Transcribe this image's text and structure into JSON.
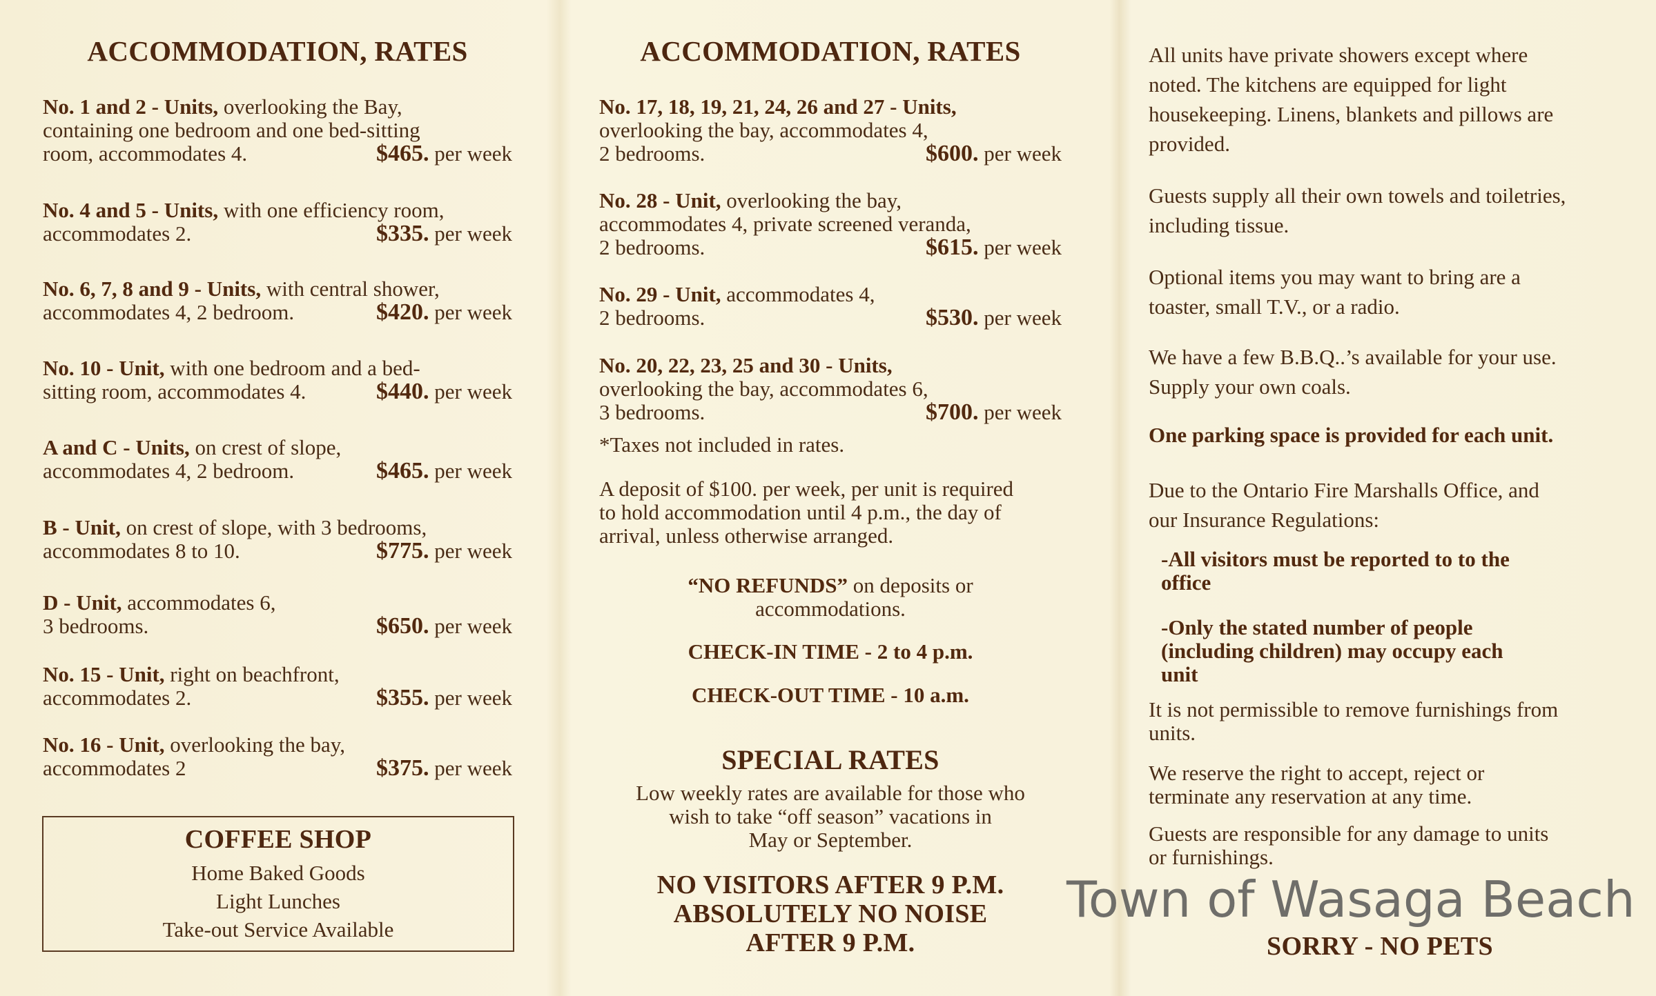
{
  "left": {
    "title": "ACCOMMODATION, RATES",
    "units": [
      {
        "name": "No. 1 and 2 - Units,",
        "desc": " overlooking the Bay,\ncontaining one bedroom and one bed-sitting\nroom, accommodates 4.",
        "price": "$465.",
        "suffix": " per week"
      },
      {
        "name": "No. 4 and 5 - Units,",
        "desc": " with one efficiency room,\naccommodates 2.",
        "price": "$335.",
        "suffix": " per week"
      },
      {
        "name": "No. 6, 7, 8 and 9 - Units,",
        "desc": " with central shower,\naccommodates 4, 2 bedroom.",
        "price": "$420.",
        "suffix": " per week"
      },
      {
        "name": "No. 10 - Unit,",
        "desc": " with one bedroom and a bed-\nsitting room, accommodates 4.",
        "price": "$440.",
        "suffix": " per week"
      },
      {
        "name": "A and C - Units,",
        "desc": " on crest of slope,\naccommodates 4, 2 bedroom.",
        "price": "$465.",
        "suffix": " per week"
      },
      {
        "name": "B - Unit,",
        "desc": " on crest of slope, with 3 bedrooms,\naccommodates 8 to 10.",
        "price": "$775.",
        "suffix": " per week"
      },
      {
        "name": "D - Unit,",
        "desc": " accommodates 6,\n3 bedrooms.",
        "price": "$650.",
        "suffix": " per week"
      },
      {
        "name": "No. 15 - Unit,",
        "desc": " right on beachfront,\naccommodates 2.",
        "price": "$355.",
        "suffix": " per week"
      },
      {
        "name": "No. 16 - Unit,",
        "desc": " overlooking the bay,\naccommodates 2",
        "price": "$375.",
        "suffix": " per week"
      }
    ],
    "coffee_shop": {
      "title": "COFFEE SHOP",
      "items": [
        "Home Baked Goods",
        "Light Lunches",
        "Take-out Service Available"
      ]
    }
  },
  "middle": {
    "title": "ACCOMMODATION, RATES",
    "units": [
      {
        "name": "No. 17, 18, 19, 21, 24, 26 and 27 - Units,",
        "desc": "\noverlooking the bay, accommodates 4,\n2 bedrooms.",
        "price": "$600.",
        "suffix": " per week"
      },
      {
        "name": "No. 28 - Unit,",
        "desc": " overlooking the bay,\naccommodates 4, private screened veranda,\n2 bedrooms.",
        "price": "$615.",
        "suffix": " per week"
      },
      {
        "name": "No. 29 - Unit,",
        "desc": " accommodates 4,\n2 bedrooms.",
        "price": "$530.",
        "suffix": " per week"
      },
      {
        "name": "No. 20, 22, 23, 25 and 30 - Units,",
        "desc": "\noverlooking the bay, accommodates 6,\n3 bedrooms.",
        "price": "$700.",
        "suffix": " per week"
      }
    ],
    "taxes_note": "*Taxes not included in rates.",
    "deposit": "A deposit of $100. per week, per unit is required\nto hold accommodation until 4 p.m., the day of\narrival, unless otherwise arranged.",
    "no_refunds_bold": "“NO REFUNDS”",
    "no_refunds_rest": " on deposits or\naccommodations.",
    "check_in": "CHECK-IN TIME - 2 to 4 p.m.",
    "check_out": "CHECK-OUT TIME - 10 a.m.",
    "special_rates_title": "SPECIAL RATES",
    "special_rates_text": "Low weekly rates are available for those who\nwish to take “off season” vacations in\nMay or September.",
    "no_visitors": "NO VISITORS AFTER 9 P.M.\nABSOLUTELY NO NOISE\nAFTER 9 P.M."
  },
  "right": {
    "p1": "All units have private showers except where\nnoted. The kitchens are equipped for light\nhousekeeping. Linens, blankets and pillows are\nprovided.",
    "p2": "Guests supply all their own towels and toiletries,\nincluding tissue.",
    "p3": "Optional items you may want to bring are a\ntoaster, small T.V., or a radio.",
    "p4": "We have a few B.B.Q..’s available for your use.\nSupply your own coals.",
    "p5": "One parking space is provided for each unit.",
    "p6": "Due to the Ontario Fire Marshalls Office, and\nour Insurance Regulations:",
    "rule1": "-All visitors must be reported to to the\noffice",
    "rule2": "-Only the stated number of people\n(including children) may occupy each\nunit",
    "p7": "It is not permissible to remove furnishings from\nunits.",
    "p8": "We reserve the right to accept, reject or\nterminate any reservation at any time.",
    "p9": "Guests are responsible for any damage to units\nor furnishings.",
    "no_pets": "SORRY - NO PETS"
  },
  "watermark": "Town of Wasaga Beach"
}
